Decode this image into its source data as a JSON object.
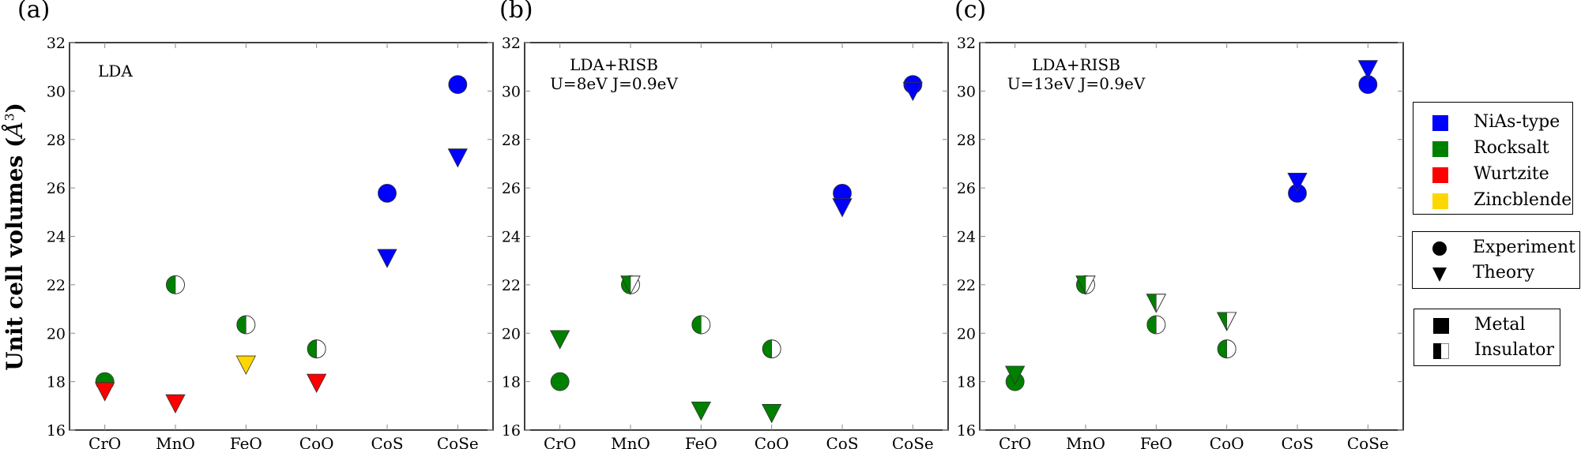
{
  "figure": {
    "ylabel": "Unit cell volumes (Å³)",
    "ylabel_main": "Unit cell volumes (",
    "ylabel_unit": "Å",
    "ylabel_sup": "3",
    "ylabel_close": ")"
  },
  "panels": [
    {
      "label": "(a)",
      "annotation_line1": "LDA",
      "annotation_line2": ""
    },
    {
      "label": "(b)",
      "annotation_line1": "LDA+RISB",
      "annotation_line2": "U=8eV J=0.9eV"
    },
    {
      "label": "(c)",
      "annotation_line1": "LDA+RISB",
      "annotation_line2": "U=13eV J=0.9eV"
    }
  ],
  "legend": {
    "structure": [
      {
        "label": "NiAs-type",
        "color": "#0000ff"
      },
      {
        "label": "Rocksalt",
        "color": "#008000"
      },
      {
        "label": "Wurtzite",
        "color": "#ff0000"
      },
      {
        "label": "Zincblende",
        "color": "#ffd700"
      }
    ],
    "source": [
      {
        "label": "Experiment",
        "marker": "circle"
      },
      {
        "label": "Theory",
        "marker": "triangle-down"
      }
    ],
    "state": [
      {
        "label": "Metal",
        "marker": "full"
      },
      {
        "label": "Insulator",
        "marker": "half"
      }
    ]
  },
  "colors": {
    "NiAs-type": "#0000ff",
    "Rocksalt": "#008000",
    "Wurtzite": "#ff0000",
    "Zincblende": "#ffd700"
  },
  "chart_data": [
    {
      "type": "scatter",
      "title": "(a) LDA",
      "xlabel": "",
      "ylabel": "Unit cell volumes (Å³)",
      "categories": [
        "CrO",
        "MnO",
        "FeO",
        "CoO",
        "CoS",
        "CoSe"
      ],
      "yticks": [
        16,
        18,
        20,
        22,
        24,
        26,
        28,
        30,
        32
      ],
      "ylim": [
        16,
        32
      ],
      "grid": false,
      "series": [
        {
          "name": "Experiment",
          "marker": "circle",
          "points": [
            {
              "x": "CrO",
              "y": 18.0,
              "structure": "Rocksalt",
              "state": "Metal"
            },
            {
              "x": "MnO",
              "y": 22.0,
              "structure": "Rocksalt",
              "state": "Insulator"
            },
            {
              "x": "FeO",
              "y": 20.35,
              "structure": "Rocksalt",
              "state": "Insulator"
            },
            {
              "x": "CoO",
              "y": 19.35,
              "structure": "Rocksalt",
              "state": "Insulator"
            },
            {
              "x": "CoS",
              "y": 25.78,
              "structure": "NiAs-type",
              "state": "Metal"
            },
            {
              "x": "CoSe",
              "y": 30.27,
              "structure": "NiAs-type",
              "state": "Metal"
            }
          ]
        },
        {
          "name": "Theory",
          "marker": "triangle-down",
          "points": [
            {
              "x": "CrO",
              "y": 17.7,
              "structure": "Wurtzite",
              "state": "Metal"
            },
            {
              "x": "MnO",
              "y": 17.2,
              "structure": "Wurtzite",
              "state": "Metal"
            },
            {
              "x": "FeO",
              "y": 18.8,
              "structure": "Zincblende",
              "state": "Metal"
            },
            {
              "x": "CoO",
              "y": 18.05,
              "structure": "Wurtzite",
              "state": "Metal"
            },
            {
              "x": "CoS",
              "y": 23.2,
              "structure": "NiAs-type",
              "state": "Metal"
            },
            {
              "x": "CoSe",
              "y": 27.35,
              "structure": "NiAs-type",
              "state": "Metal"
            }
          ]
        }
      ]
    },
    {
      "type": "scatter",
      "title": "(b) LDA+RISB U=8eV J=0.9eV",
      "xlabel": "",
      "ylabel": "",
      "categories": [
        "CrO",
        "MnO",
        "FeO",
        "CoO",
        "CoS",
        "CoSe"
      ],
      "yticks": [
        16,
        18,
        20,
        22,
        24,
        26,
        28,
        30,
        32
      ],
      "ylim": [
        16,
        32
      ],
      "grid": false,
      "series": [
        {
          "name": "Experiment",
          "marker": "circle",
          "points": [
            {
              "x": "CrO",
              "y": 18.0,
              "structure": "Rocksalt",
              "state": "Metal"
            },
            {
              "x": "MnO",
              "y": 22.0,
              "structure": "Rocksalt",
              "state": "Insulator"
            },
            {
              "x": "FeO",
              "y": 20.35,
              "structure": "Rocksalt",
              "state": "Insulator"
            },
            {
              "x": "CoO",
              "y": 19.35,
              "structure": "Rocksalt",
              "state": "Insulator"
            },
            {
              "x": "CoS",
              "y": 25.78,
              "structure": "NiAs-type",
              "state": "Metal"
            },
            {
              "x": "CoSe",
              "y": 30.27,
              "structure": "NiAs-type",
              "state": "Metal"
            }
          ]
        },
        {
          "name": "Theory",
          "marker": "triangle-down",
          "points": [
            {
              "x": "CrO",
              "y": 19.85,
              "structure": "Rocksalt",
              "state": "Metal"
            },
            {
              "x": "MnO",
              "y": 22.1,
              "structure": "Rocksalt",
              "state": "Insulator"
            },
            {
              "x": "FeO",
              "y": 16.9,
              "structure": "Rocksalt",
              "state": "Metal"
            },
            {
              "x": "CoO",
              "y": 16.8,
              "structure": "Rocksalt",
              "state": "Metal"
            },
            {
              "x": "CoS",
              "y": 25.3,
              "structure": "NiAs-type",
              "state": "Metal"
            },
            {
              "x": "CoSe",
              "y": 30.1,
              "structure": "NiAs-type",
              "state": "Metal"
            }
          ]
        }
      ]
    },
    {
      "type": "scatter",
      "title": "(c) LDA+RISB U=13eV J=0.9eV",
      "xlabel": "",
      "ylabel": "",
      "categories": [
        "CrO",
        "MnO",
        "FeO",
        "CoO",
        "CoS",
        "CoSe"
      ],
      "yticks": [
        16,
        18,
        20,
        22,
        24,
        26,
        28,
        30,
        32
      ],
      "ylim": [
        16,
        32
      ],
      "grid": false,
      "series": [
        {
          "name": "Experiment",
          "marker": "circle",
          "points": [
            {
              "x": "CrO",
              "y": 18.0,
              "structure": "Rocksalt",
              "state": "Metal"
            },
            {
              "x": "MnO",
              "y": 22.0,
              "structure": "Rocksalt",
              "state": "Insulator"
            },
            {
              "x": "FeO",
              "y": 20.35,
              "structure": "Rocksalt",
              "state": "Insulator"
            },
            {
              "x": "CoO",
              "y": 19.35,
              "structure": "Rocksalt",
              "state": "Insulator"
            },
            {
              "x": "CoS",
              "y": 25.78,
              "structure": "NiAs-type",
              "state": "Metal"
            },
            {
              "x": "CoSe",
              "y": 30.27,
              "structure": "NiAs-type",
              "state": "Metal"
            }
          ]
        },
        {
          "name": "Theory",
          "marker": "triangle-down",
          "points": [
            {
              "x": "CrO",
              "y": 18.38,
              "structure": "Rocksalt",
              "state": "Metal"
            },
            {
              "x": "MnO",
              "y": 22.1,
              "structure": "Rocksalt",
              "state": "Insulator"
            },
            {
              "x": "FeO",
              "y": 21.35,
              "structure": "Rocksalt",
              "state": "Insulator"
            },
            {
              "x": "CoO",
              "y": 20.6,
              "structure": "Rocksalt",
              "state": "Insulator"
            },
            {
              "x": "CoS",
              "y": 26.35,
              "structure": "NiAs-type",
              "state": "Metal"
            },
            {
              "x": "CoSe",
              "y": 31.0,
              "structure": "NiAs-type",
              "state": "Metal"
            }
          ]
        }
      ]
    }
  ]
}
